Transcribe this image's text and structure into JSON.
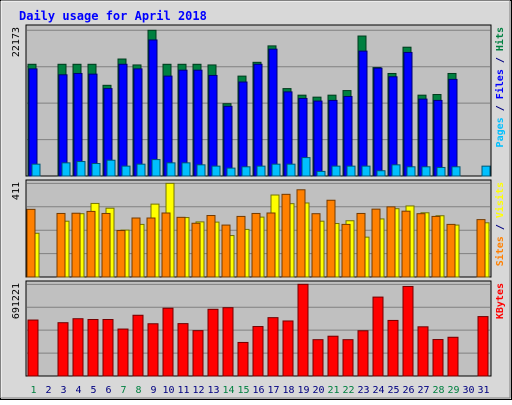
{
  "chart_data": {
    "type": "bar",
    "title": "Daily usage for April 2018",
    "colors": {
      "hits": "#008040",
      "files": "#0000ff",
      "pages": "#00c0ff",
      "visits": "#ffff00",
      "sites": "#ff8000",
      "kbytes": "#ff0000",
      "title": "#0000ff",
      "weekday": "#000080",
      "weekend": "#008040",
      "plot_bg": "#c0c0c0",
      "frame_bg": "#d8d8d8"
    },
    "days": [
      {
        "label": "1",
        "weekend": true
      },
      {
        "label": "2",
        "weekend": false
      },
      {
        "label": "3",
        "weekend": false
      },
      {
        "label": "4",
        "weekend": false
      },
      {
        "label": "5",
        "weekend": false
      },
      {
        "label": "6",
        "weekend": false
      },
      {
        "label": "7",
        "weekend": true
      },
      {
        "label": "8",
        "weekend": true
      },
      {
        "label": "9",
        "weekend": false
      },
      {
        "label": "10",
        "weekend": false
      },
      {
        "label": "11",
        "weekend": false
      },
      {
        "label": "12",
        "weekend": false
      },
      {
        "label": "13",
        "weekend": false
      },
      {
        "label": "14",
        "weekend": true
      },
      {
        "label": "15",
        "weekend": true
      },
      {
        "label": "16",
        "weekend": false
      },
      {
        "label": "17",
        "weekend": false
      },
      {
        "label": "18",
        "weekend": false
      },
      {
        "label": "19",
        "weekend": false
      },
      {
        "label": "20",
        "weekend": false
      },
      {
        "label": "21",
        "weekend": true
      },
      {
        "label": "22",
        "weekend": true
      },
      {
        "label": "23",
        "weekend": false
      },
      {
        "label": "24",
        "weekend": false
      },
      {
        "label": "25",
        "weekend": false
      },
      {
        "label": "26",
        "weekend": false
      },
      {
        "label": "27",
        "weekend": false
      },
      {
        "label": "28",
        "weekend": true
      },
      {
        "label": "29",
        "weekend": true
      },
      {
        "label": "30",
        "weekend": false
      },
      {
        "label": "31",
        "weekend": false
      }
    ],
    "panels": [
      {
        "name": "usage",
        "ymax": 22173,
        "ymax_label": "22173",
        "label_parts": [
          {
            "text": "Pages",
            "color": "#00c0ff"
          },
          {
            "text": " / ",
            "color": "#000080"
          },
          {
            "text": "Files",
            "color": "#0000ff"
          },
          {
            "text": " / ",
            "color": "#000080"
          },
          {
            "text": "Hits",
            "color": "#008040"
          }
        ],
        "series": [
          {
            "name": "Hits",
            "color": "#008040",
            "values": [
              17000,
              0,
              17000,
              17000,
              17000,
              13800,
              17800,
              16900,
              22170,
              17000,
              17000,
              17000,
              16900,
              11000,
              15200,
              17300,
              19800,
              13300,
              12300,
              12000,
              12300,
              13000,
              21300,
              16500,
              15600,
              19600,
              12300,
              12400,
              15600,
              0,
              0
            ]
          },
          {
            "name": "Files",
            "color": "#0000ff",
            "values": [
              16300,
              0,
              15400,
              15600,
              15500,
              13300,
              17000,
              16300,
              20700,
              15200,
              16100,
              16100,
              15300,
              10600,
              14300,
              17000,
              19300,
              12800,
              11800,
              11400,
              11500,
              12100,
              19000,
              16400,
              15100,
              18800,
              11700,
              11500,
              14700,
              0,
              0
            ]
          },
          {
            "name": "Pages",
            "color": "#00c0ff",
            "values": [
              1800,
              0,
              2000,
              2200,
              1900,
              2400,
              1500,
              1800,
              2500,
              2000,
              2000,
              1700,
              1500,
              1200,
              1400,
              1500,
              1800,
              1800,
              2800,
              700,
              1500,
              1500,
              1500,
              800,
              1700,
              1400,
              1400,
              1300,
              1400,
              0,
              1500
            ]
          }
        ]
      },
      {
        "name": "visits",
        "ymax": 411,
        "ymax_label": "411",
        "label_parts": [
          {
            "text": "Sites",
            "color": "#ff8000"
          },
          {
            "text": " / ",
            "color": "#000080"
          },
          {
            "text": "Visits",
            "color": "#ffff00"
          }
        ],
        "series": [
          {
            "name": "Visits",
            "color": "#ffff00",
            "values": [
              192,
              0,
              245,
              278,
              323,
              302,
              206,
              231,
              320,
              411,
              261,
              242,
              241,
              182,
              209,
              263,
              360,
              322,
              325,
              245,
              235,
              247,
              175,
              255,
              300,
              312,
              282,
              269,
              228,
              0,
              238
            ]
          },
          {
            "name": "Sites",
            "color": "#ff8000",
            "values": [
              297,
              0,
              279,
              280,
              288,
              279,
              204,
              259,
              259,
              281,
              262,
              236,
              270,
              228,
              266,
              279,
              281,
              363,
              383,
              278,
              337,
              231,
              279,
              298,
              308,
              289,
              278,
              266,
              231,
              0,
              252
            ]
          }
        ]
      },
      {
        "name": "kbytes",
        "ymax": 691221,
        "ymax_label": "691221",
        "label_parts": [
          {
            "text": "KBytes",
            "color": "#ff0000"
          }
        ],
        "series": [
          {
            "name": "KBytes",
            "color": "#ff0000",
            "values": [
              422000,
              0,
              402000,
              432000,
              426000,
              426000,
              354000,
              458000,
              394000,
              511000,
              395000,
              342000,
              503000,
              515000,
              253000,
              373000,
              440000,
              415000,
              691221,
              274000,
              300000,
              274000,
              341000,
              595000,
              419000,
              675000,
              371000,
              275000,
              292000,
              0,
              448000
            ]
          }
        ]
      }
    ]
  }
}
